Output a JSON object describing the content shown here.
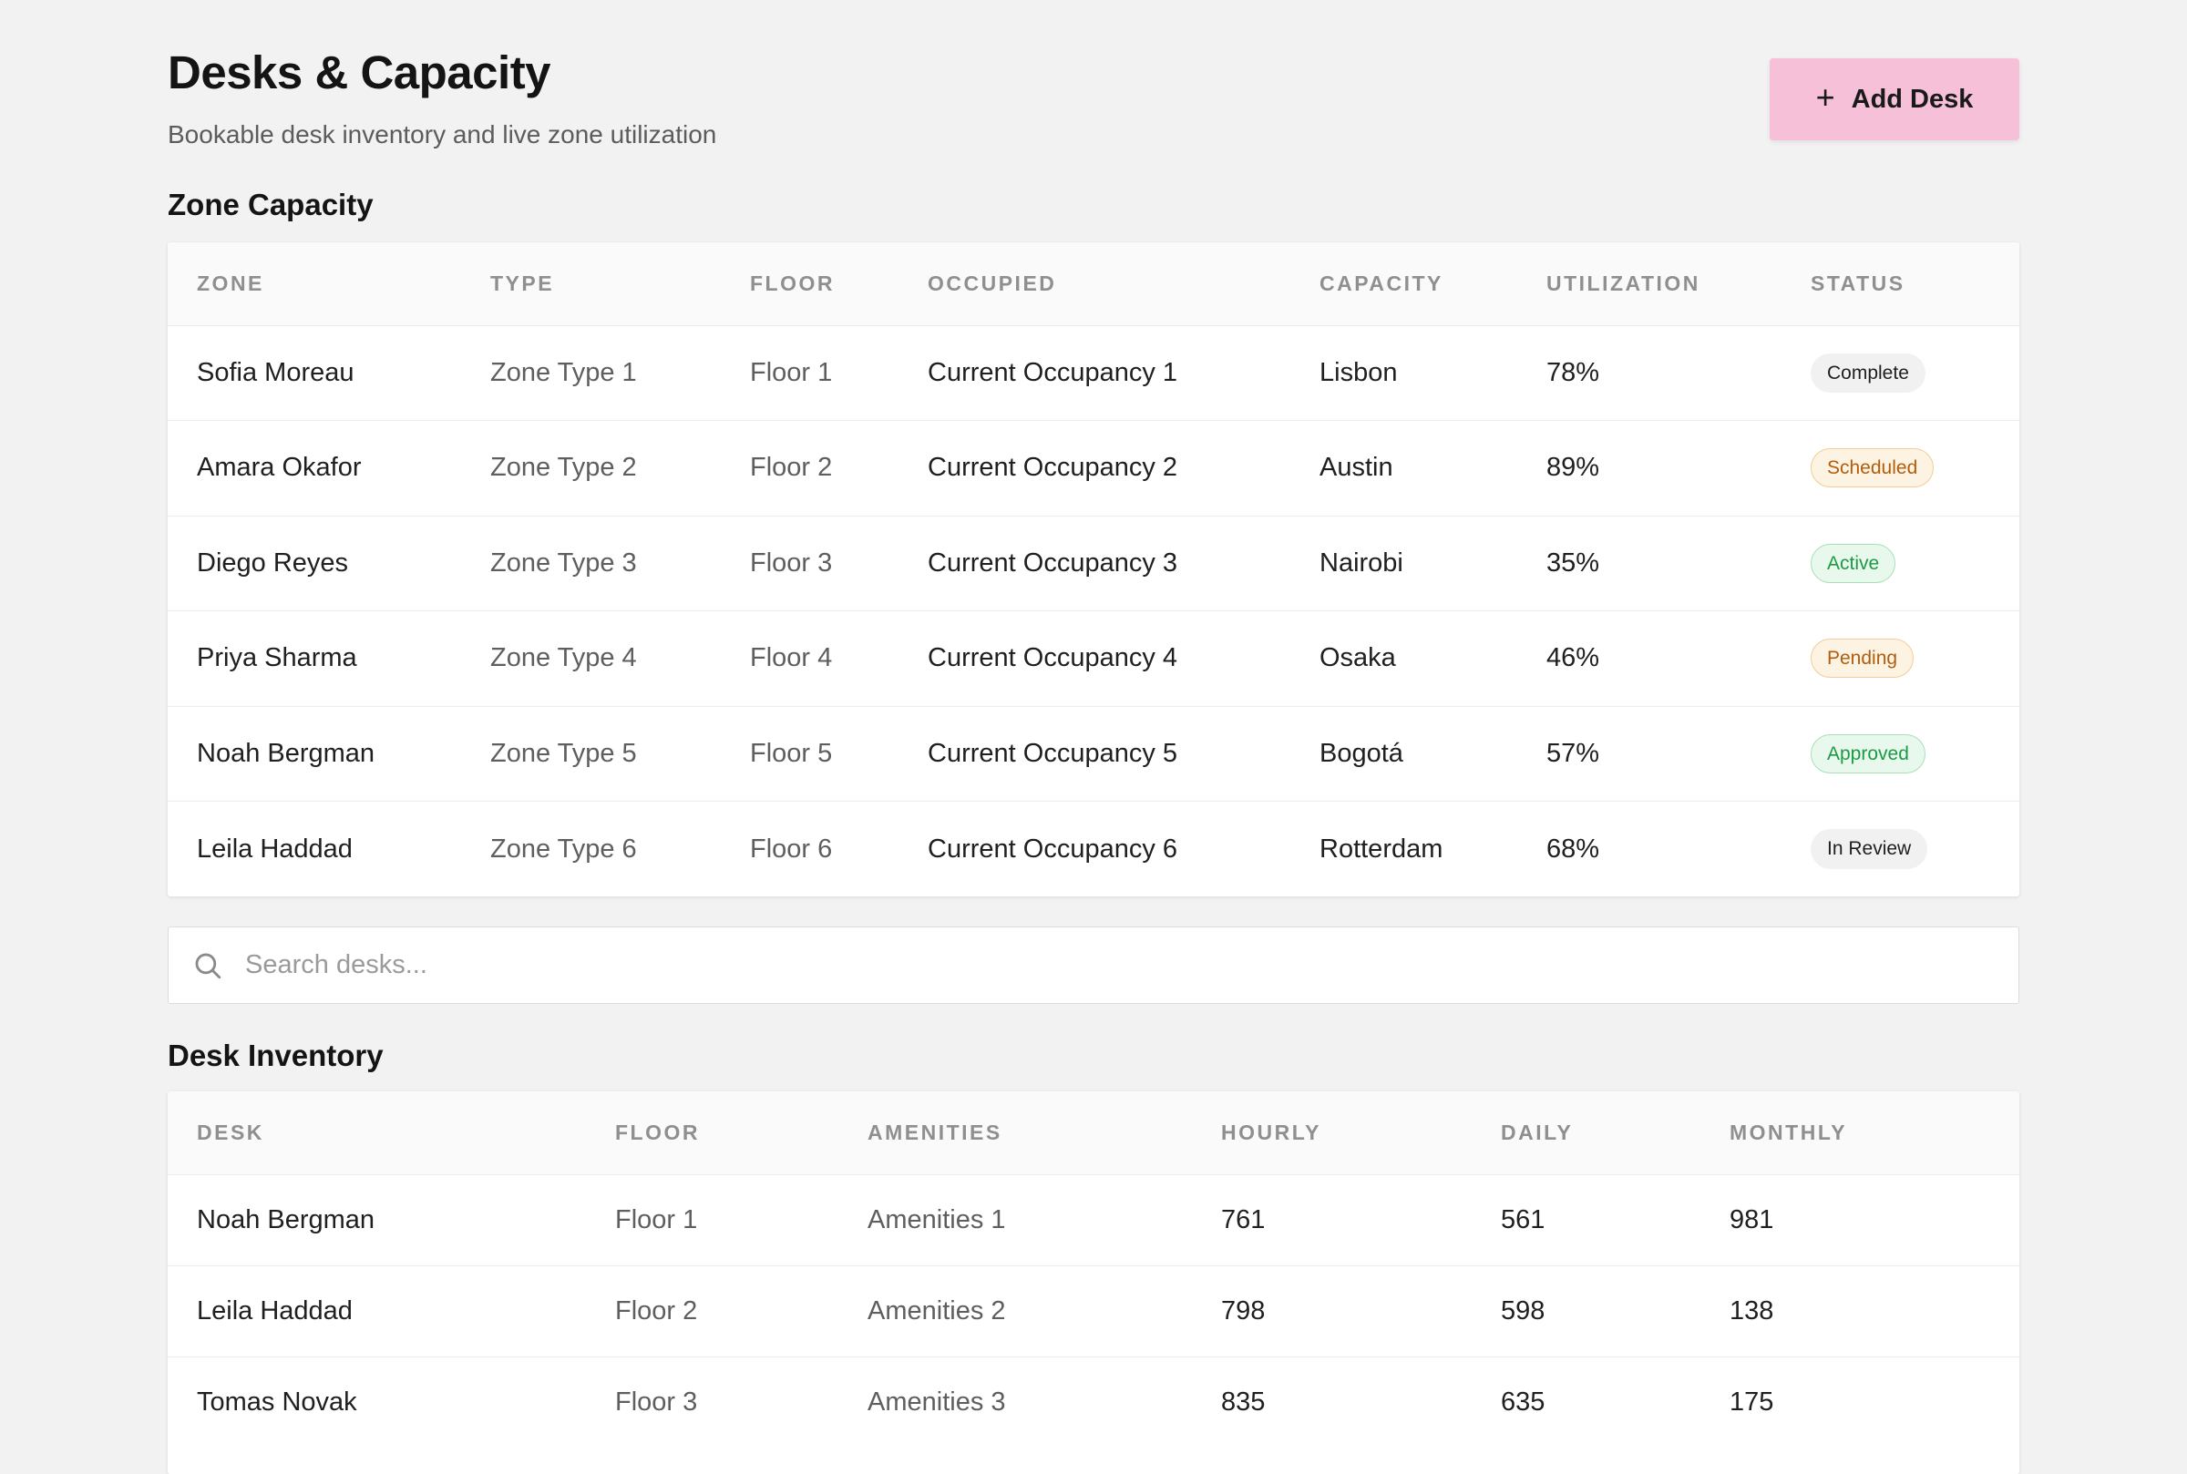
{
  "header": {
    "title": "Desks & Capacity",
    "subtitle": "Bookable desk inventory and live zone utilization",
    "add_button_label": "Add Desk",
    "add_button_color": "#f6c1d8"
  },
  "zone_capacity": {
    "title": "Zone Capacity",
    "columns": [
      "ZONE",
      "TYPE",
      "FLOOR",
      "OCCUPIED",
      "CAPACITY",
      "UTILIZATION",
      "STATUS"
    ],
    "rows": [
      {
        "zone": "Sofia Moreau",
        "type": "Zone Type 1",
        "floor": "Floor 1",
        "occupied": "Current Occupancy 1",
        "capacity": "Lisbon",
        "utilization": "78%",
        "status": "Complete",
        "status_tone": "neutral"
      },
      {
        "zone": "Amara Okafor",
        "type": "Zone Type 2",
        "floor": "Floor 2",
        "occupied": "Current Occupancy 2",
        "capacity": "Austin",
        "utilization": "89%",
        "status": "Scheduled",
        "status_tone": "orange"
      },
      {
        "zone": "Diego Reyes",
        "type": "Zone Type 3",
        "floor": "Floor 3",
        "occupied": "Current Occupancy 3",
        "capacity": "Nairobi",
        "utilization": "35%",
        "status": "Active",
        "status_tone": "green"
      },
      {
        "zone": "Priya Sharma",
        "type": "Zone Type 4",
        "floor": "Floor 4",
        "occupied": "Current Occupancy 4",
        "capacity": "Osaka",
        "utilization": "46%",
        "status": "Pending",
        "status_tone": "orange"
      },
      {
        "zone": "Noah Bergman",
        "type": "Zone Type 5",
        "floor": "Floor 5",
        "occupied": "Current Occupancy 5",
        "capacity": "Bogotá",
        "utilization": "57%",
        "status": "Approved",
        "status_tone": "green"
      },
      {
        "zone": "Leila Haddad",
        "type": "Zone Type 6",
        "floor": "Floor 6",
        "occupied": "Current Occupancy 6",
        "capacity": "Rotterdam",
        "utilization": "68%",
        "status": "In Review",
        "status_tone": "neutral"
      }
    ]
  },
  "search": {
    "placeholder": "Search desks...",
    "value": ""
  },
  "desk_inventory": {
    "title": "Desk Inventory",
    "columns": [
      "DESK",
      "FLOOR",
      "AMENITIES",
      "HOURLY",
      "DAILY",
      "MONTHLY"
    ],
    "rows": [
      {
        "desk": "Noah Bergman",
        "floor": "Floor 1",
        "amenities": "Amenities 1",
        "hourly": "761",
        "daily": "561",
        "monthly": "981"
      },
      {
        "desk": "Leila Haddad",
        "floor": "Floor 2",
        "amenities": "Amenities 2",
        "hourly": "798",
        "daily": "598",
        "monthly": "138"
      },
      {
        "desk": "Tomas Novak",
        "floor": "Floor 3",
        "amenities": "Amenities 3",
        "hourly": "835",
        "daily": "635",
        "monthly": "175"
      }
    ]
  }
}
